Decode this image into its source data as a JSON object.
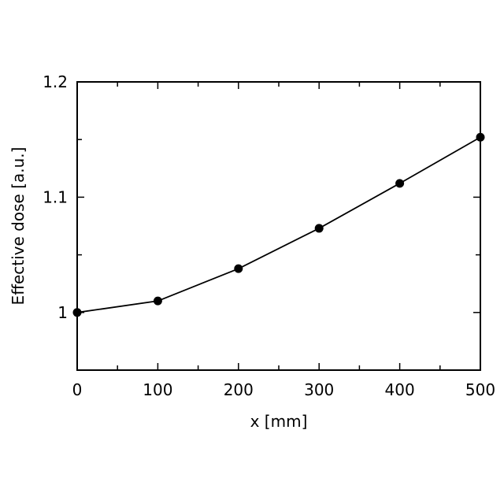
{
  "chart_data": {
    "type": "line",
    "xlabel": "x [mm]",
    "ylabel": "Effective dose [a.u.]",
    "xlim": [
      0,
      500
    ],
    "ylim": [
      0.95,
      1.2
    ],
    "x_ticks": [
      0,
      100,
      200,
      300,
      400,
      500
    ],
    "x_tick_labels": [
      "0",
      "100",
      "200",
      "300",
      "400",
      "500"
    ],
    "x_minor_ticks": [
      50,
      150,
      250,
      350,
      450
    ],
    "y_ticks": [
      1.0,
      1.1,
      1.2
    ],
    "y_tick_labels": [
      "1",
      "1.1",
      "1.2"
    ],
    "y_minor_ticks": [
      1.05,
      1.15
    ],
    "grid": false,
    "series": [
      {
        "x": [
          0,
          100,
          200,
          300,
          400,
          500
        ],
        "y": [
          1.0,
          1.01,
          1.038,
          1.073,
          1.112,
          1.152
        ],
        "color": "#000000",
        "marker": "filled-circle"
      }
    ]
  }
}
